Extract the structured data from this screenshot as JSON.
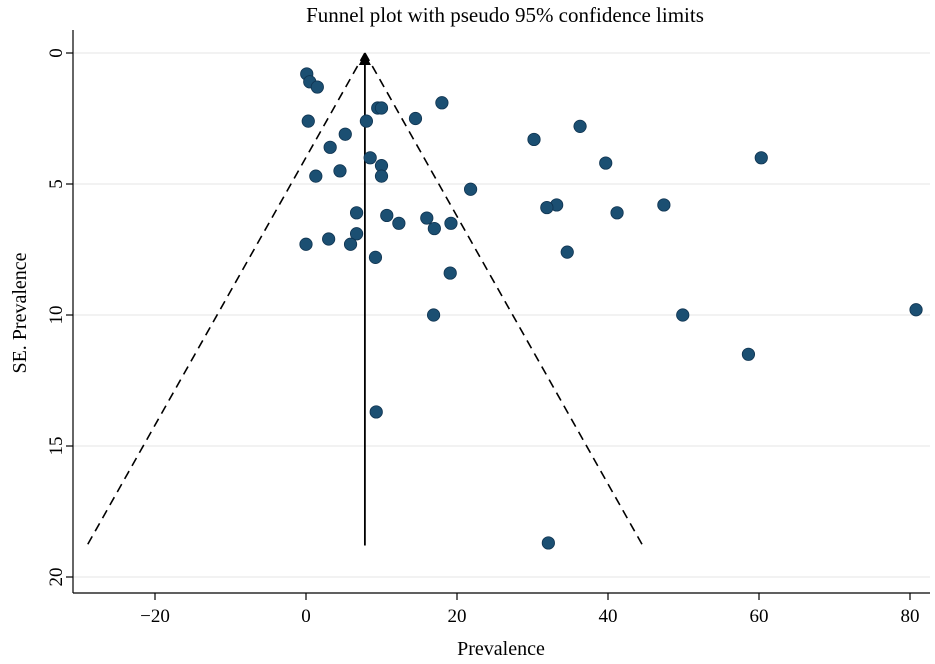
{
  "chart_data": {
    "type": "scatter",
    "title": "Funnel plot with pseudo 95% confidence limits",
    "xlabel": "Prevalence",
    "ylabel": "SE. Prevalence",
    "xlim": [
      -31,
      82
    ],
    "ylim": [
      0,
      20
    ],
    "y_axis_inverted": true,
    "xticks": [
      -20,
      0,
      20,
      40,
      60,
      80
    ],
    "yticks": [
      0,
      5,
      10,
      15,
      20
    ],
    "xtick_labels": [
      "−20",
      "0",
      "20",
      "40",
      "60",
      "80"
    ],
    "ytick_labels": [
      "0",
      "5",
      "10",
      "15",
      "20"
    ],
    "grid": "horizontal",
    "point_color": "#1b4f72",
    "pooled_estimate": {
      "x": 7.8,
      "se_range": [
        0,
        18.8
      ],
      "label": "pooled effect line"
    },
    "confidence_limits": {
      "label": "pseudo 95% confidence limits",
      "apex": [
        7.8,
        0
      ],
      "left_end": [
        -29,
        18.8
      ],
      "right_end": [
        44.6,
        18.8
      ]
    },
    "points": [
      {
        "x": 0.1,
        "y": 0.8
      },
      {
        "x": 0.5,
        "y": 1.1
      },
      {
        "x": 1.5,
        "y": 1.3
      },
      {
        "x": 18.0,
        "y": 1.9
      },
      {
        "x": 9.5,
        "y": 2.1
      },
      {
        "x": 10.0,
        "y": 2.1
      },
      {
        "x": 0.3,
        "y": 2.6
      },
      {
        "x": 8.0,
        "y": 2.6
      },
      {
        "x": 14.5,
        "y": 2.5
      },
      {
        "x": 36.3,
        "y": 2.8
      },
      {
        "x": 5.2,
        "y": 3.1
      },
      {
        "x": 30.2,
        "y": 3.3
      },
      {
        "x": 3.2,
        "y": 3.6
      },
      {
        "x": 8.5,
        "y": 4.0
      },
      {
        "x": 10.0,
        "y": 4.3
      },
      {
        "x": 39.7,
        "y": 4.2
      },
      {
        "x": 60.3,
        "y": 4.0
      },
      {
        "x": 4.5,
        "y": 4.5
      },
      {
        "x": 1.3,
        "y": 4.7
      },
      {
        "x": 10.0,
        "y": 4.7
      },
      {
        "x": 21.8,
        "y": 5.2
      },
      {
        "x": 33.2,
        "y": 5.8
      },
      {
        "x": 31.9,
        "y": 5.9
      },
      {
        "x": 47.4,
        "y": 5.8
      },
      {
        "x": 41.2,
        "y": 6.1
      },
      {
        "x": 6.7,
        "y": 6.1
      },
      {
        "x": 10.7,
        "y": 6.2
      },
      {
        "x": 16.0,
        "y": 6.3
      },
      {
        "x": 12.3,
        "y": 6.5
      },
      {
        "x": 19.2,
        "y": 6.5
      },
      {
        "x": 17.0,
        "y": 6.7
      },
      {
        "x": 6.7,
        "y": 6.9
      },
      {
        "x": 3.0,
        "y": 7.1
      },
      {
        "x": 0.0,
        "y": 7.3
      },
      {
        "x": 5.9,
        "y": 7.3
      },
      {
        "x": 34.6,
        "y": 7.6
      },
      {
        "x": 9.2,
        "y": 7.8
      },
      {
        "x": 19.1,
        "y": 8.4
      },
      {
        "x": 16.9,
        "y": 10.0
      },
      {
        "x": 49.9,
        "y": 10.0
      },
      {
        "x": 80.8,
        "y": 9.8
      },
      {
        "x": 58.6,
        "y": 11.5
      },
      {
        "x": 9.3,
        "y": 13.7
      },
      {
        "x": 32.1,
        "y": 18.7
      }
    ]
  }
}
